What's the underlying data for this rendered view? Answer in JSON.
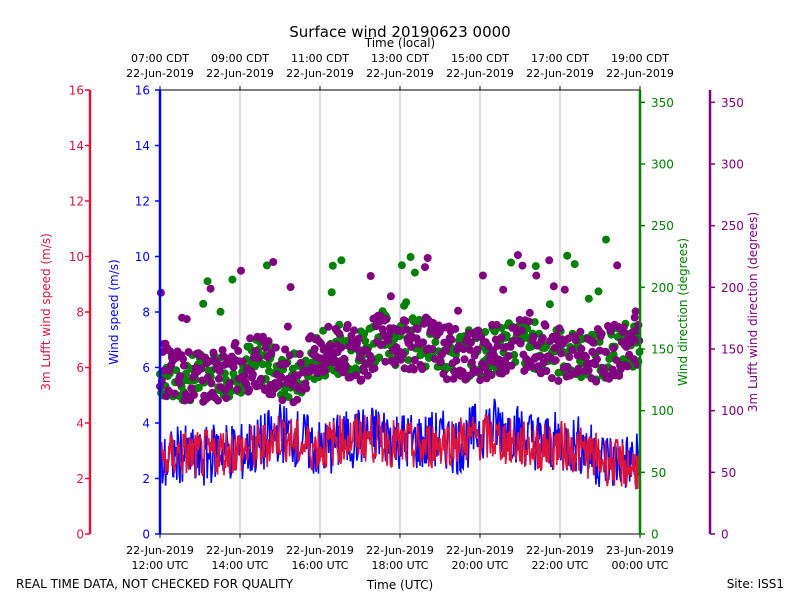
{
  "chart_data": {
    "type": "line",
    "title": "Surface wind 20190623 0000",
    "top_xlabel": "Time (local)",
    "xlabel": "Time (UTC)",
    "footer_left": "REAL TIME DATA, NOT CHECKED FOR QUALITY",
    "footer_right": "Site: ISS1",
    "x_hours_utc": [
      12,
      24
    ],
    "bottom_ticks": [
      {
        "hour": 12,
        "line1": "22-Jun-2019",
        "line2": "12:00 UTC"
      },
      {
        "hour": 14,
        "line1": "22-Jun-2019",
        "line2": "14:00 UTC"
      },
      {
        "hour": 16,
        "line1": "22-Jun-2019",
        "line2": "16:00 UTC"
      },
      {
        "hour": 18,
        "line1": "22-Jun-2019",
        "line2": "18:00 UTC"
      },
      {
        "hour": 20,
        "line1": "22-Jun-2019",
        "line2": "20:00 UTC"
      },
      {
        "hour": 22,
        "line1": "22-Jun-2019",
        "line2": "22:00 UTC"
      },
      {
        "hour": 24,
        "line1": "23-Jun-2019",
        "line2": "00:00 UTC"
      }
    ],
    "top_ticks": [
      {
        "hour": 12,
        "line1": "07:00 CDT",
        "line2": "22-Jun-2019"
      },
      {
        "hour": 14,
        "line1": "09:00 CDT",
        "line2": "22-Jun-2019"
      },
      {
        "hour": 16,
        "line1": "11:00 CDT",
        "line2": "22-Jun-2019"
      },
      {
        "hour": 18,
        "line1": "13:00 CDT",
        "line2": "22-Jun-2019"
      },
      {
        "hour": 20,
        "line1": "15:00 CDT",
        "line2": "22-Jun-2019"
      },
      {
        "hour": 22,
        "line1": "17:00 CDT",
        "line2": "22-Jun-2019"
      },
      {
        "hour": 24,
        "line1": "19:00 CDT",
        "line2": "22-Jun-2019"
      }
    ],
    "axes": [
      {
        "name": "lufft-speed-axis",
        "label": "3m Lufft wind speed (m/s)",
        "color": "#dc143c",
        "ylim": [
          0,
          16
        ],
        "ticks": [
          0,
          2,
          4,
          6,
          8,
          10,
          12,
          14,
          16
        ]
      },
      {
        "name": "wind-speed-axis",
        "label": "Wind speed (m/s)",
        "color": "#0000ff",
        "ylim": [
          0,
          16
        ],
        "ticks": [
          0,
          2,
          4,
          6,
          8,
          10,
          12,
          14,
          16
        ]
      },
      {
        "name": "wind-direction-axis",
        "label": "Wind direction (degrees)",
        "color": "#008000",
        "ylim": [
          0,
          360
        ],
        "ticks": [
          0,
          50,
          100,
          150,
          200,
          250,
          300,
          350
        ]
      },
      {
        "name": "lufft-direction-axis",
        "label": "3m Lufft wind direction (degrees)",
        "color": "#800080",
        "ylim": [
          0,
          360
        ],
        "ticks": [
          0,
          50,
          100,
          150,
          200,
          250,
          300,
          350
        ]
      }
    ],
    "grid": true,
    "series": [
      {
        "name": "Wind speed",
        "kind": "line",
        "color": "#0000ff",
        "axis": "wind-speed-axis",
        "x": [
          12.0,
          12.5,
          13.0,
          13.5,
          14.0,
          14.5,
          15.0,
          15.5,
          16.0,
          16.5,
          17.0,
          17.5,
          18.0,
          18.5,
          19.0,
          19.5,
          20.0,
          20.5,
          21.0,
          21.5,
          22.0,
          22.5,
          23.0,
          23.5,
          24.0
        ],
        "values": [
          2.4,
          2.9,
          2.6,
          3.1,
          2.9,
          3.2,
          3.7,
          3.4,
          3.0,
          3.3,
          3.5,
          3.6,
          3.4,
          3.3,
          3.4,
          3.2,
          3.8,
          3.9,
          3.6,
          3.3,
          3.3,
          3.2,
          2.7,
          2.6,
          2.6
        ]
      },
      {
        "name": "3m Lufft wind speed",
        "kind": "line",
        "color": "#dc143c",
        "axis": "lufft-speed-axis",
        "x": [
          12.0,
          12.5,
          13.0,
          13.5,
          14.0,
          14.5,
          15.0,
          15.5,
          16.0,
          16.5,
          17.0,
          17.5,
          18.0,
          18.5,
          19.0,
          19.5,
          20.0,
          20.5,
          21.0,
          21.5,
          22.0,
          22.5,
          23.0,
          23.5,
          24.0
        ],
        "values": [
          2.6,
          2.9,
          2.8,
          3.0,
          3.0,
          3.1,
          3.6,
          3.2,
          3.1,
          3.4,
          3.5,
          3.4,
          3.2,
          3.1,
          3.3,
          3.4,
          3.5,
          3.4,
          3.2,
          3.1,
          3.2,
          3.0,
          2.7,
          2.5,
          2.4
        ]
      },
      {
        "name": "Wind direction",
        "kind": "scatter",
        "color": "#008000",
        "axis": "wind-direction-axis",
        "x": [
          12.0,
          12.5,
          13.0,
          13.5,
          14.0,
          14.5,
          15.0,
          15.5,
          16.0,
          16.5,
          17.0,
          17.5,
          18.0,
          18.5,
          19.0,
          19.5,
          20.0,
          20.5,
          21.0,
          21.5,
          22.0,
          22.5,
          23.0,
          23.5,
          24.0
        ],
        "values": [
          130,
          125,
          128,
          130,
          133,
          140,
          132,
          127,
          145,
          150,
          148,
          163,
          155,
          158,
          150,
          145,
          147,
          150,
          155,
          152,
          148,
          143,
          145,
          150,
          158
        ]
      },
      {
        "name": "3m Lufft wind direction",
        "kind": "scatter",
        "color": "#800080",
        "axis": "lufft-direction-axis",
        "x": [
          12.0,
          12.5,
          13.0,
          13.5,
          14.0,
          14.5,
          15.0,
          15.5,
          16.0,
          16.5,
          17.0,
          17.5,
          18.0,
          18.5,
          19.0,
          19.5,
          20.0,
          20.5,
          21.0,
          21.5,
          22.0,
          22.5,
          23.0,
          23.5,
          24.0
        ],
        "values": [
          135,
          128,
          125,
          130,
          135,
          140,
          130,
          128,
          148,
          150,
          145,
          158,
          152,
          155,
          150,
          143,
          145,
          150,
          155,
          150,
          145,
          143,
          145,
          150,
          155
        ]
      }
    ]
  }
}
